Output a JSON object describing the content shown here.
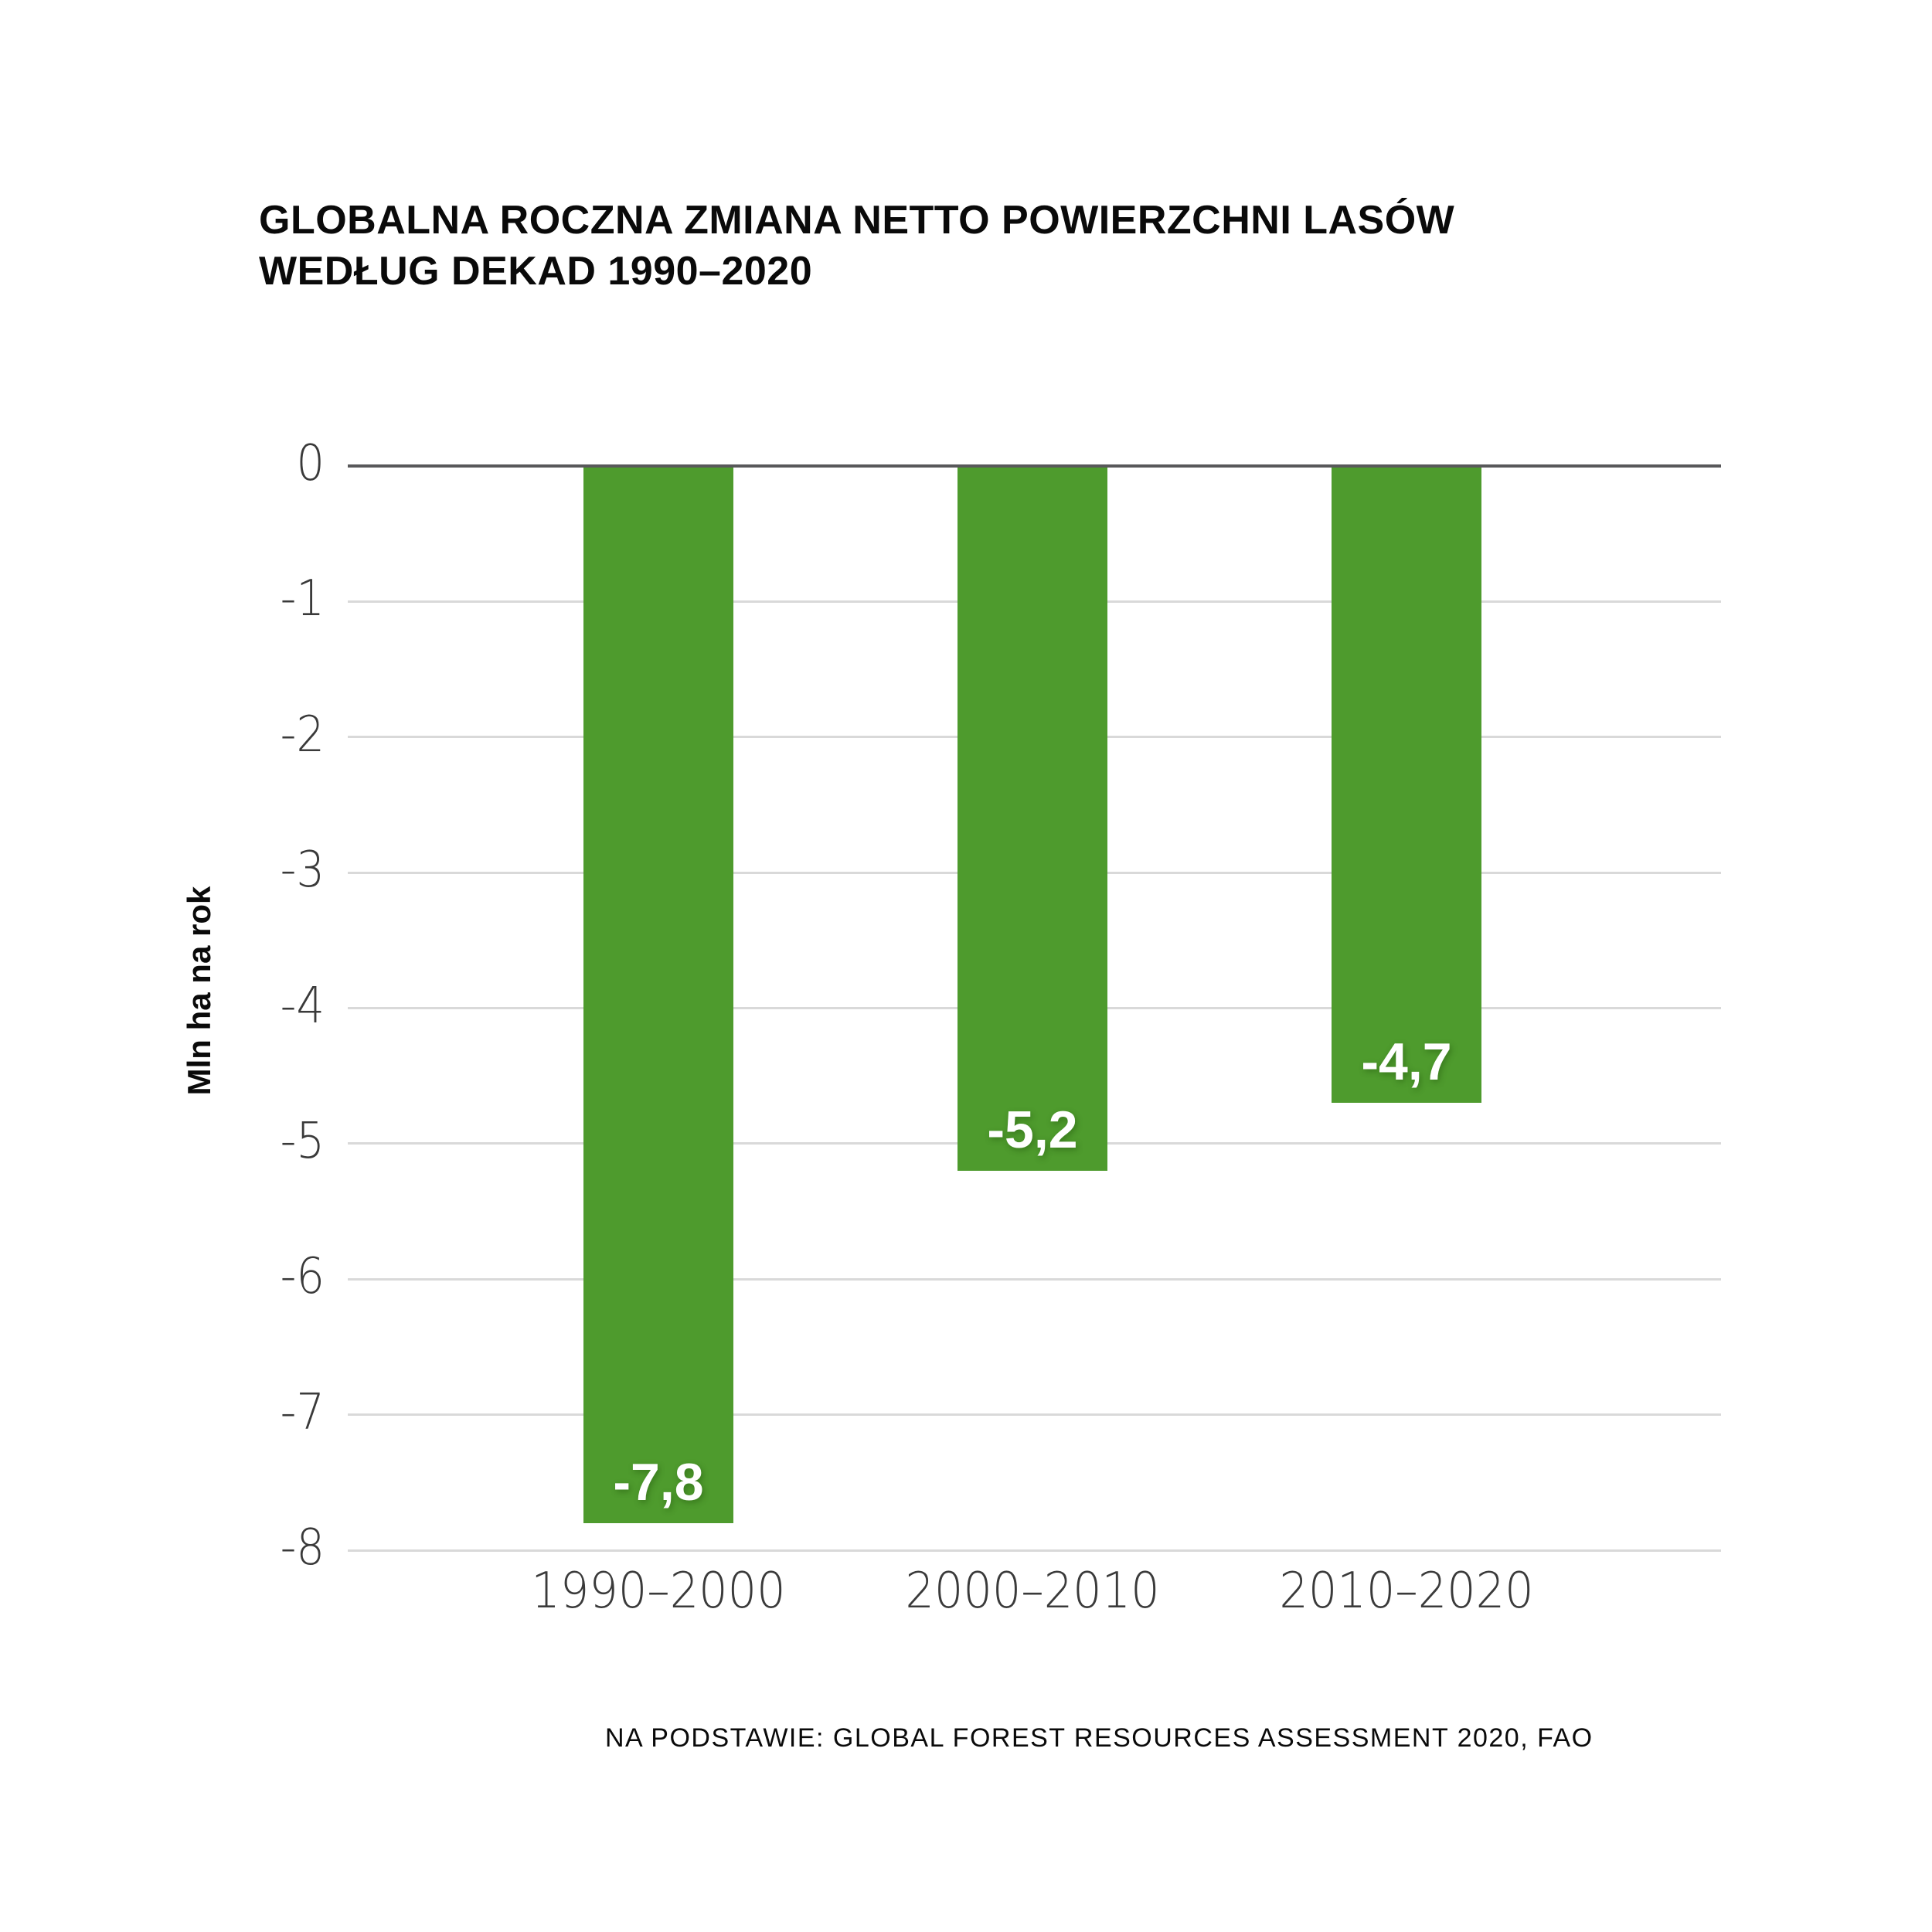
{
  "title": {
    "line1": "GLOBALNA ROCZNA ZMIANA NETTO POWIERZCHNI LASÓW",
    "line2": "WEDŁUG DEKAD 1990–2020"
  },
  "chart_data": {
    "type": "bar",
    "title": "GLOBALNA ROCZNA ZMIANA NETTO POWIERZCHNI LASÓW WEDŁUG DEKAD 1990–2020",
    "categories": [
      "1990–2000",
      "2000–2010",
      "2010–2020"
    ],
    "values": [
      -7.8,
      -5.2,
      -4.7
    ],
    "value_labels": [
      "-7,8",
      "-5,2",
      "-4,7"
    ],
    "ylabel": "Mln ha na rok",
    "xlabel": "",
    "ylim": [
      -8,
      0
    ],
    "yticks": [
      0,
      -1,
      -2,
      -3,
      -4,
      -5,
      -6,
      -7,
      -8
    ],
    "grid": true,
    "legend": false,
    "bar_color": "#4e9b2d",
    "value_label_color": "#ffffff",
    "source": "NA PODSTAWIE: GLOBAL FOREST RESOURCES ASSESSMENT 2020, FAO"
  },
  "colors": {
    "background": "#ffffff",
    "bar": "#4e9b2d",
    "zero_line": "#58585a",
    "gridline": "#d9d9d9",
    "tick_text": "#3a3a3a",
    "title_text": "#0a0a0a",
    "value_text": "#ffffff"
  }
}
